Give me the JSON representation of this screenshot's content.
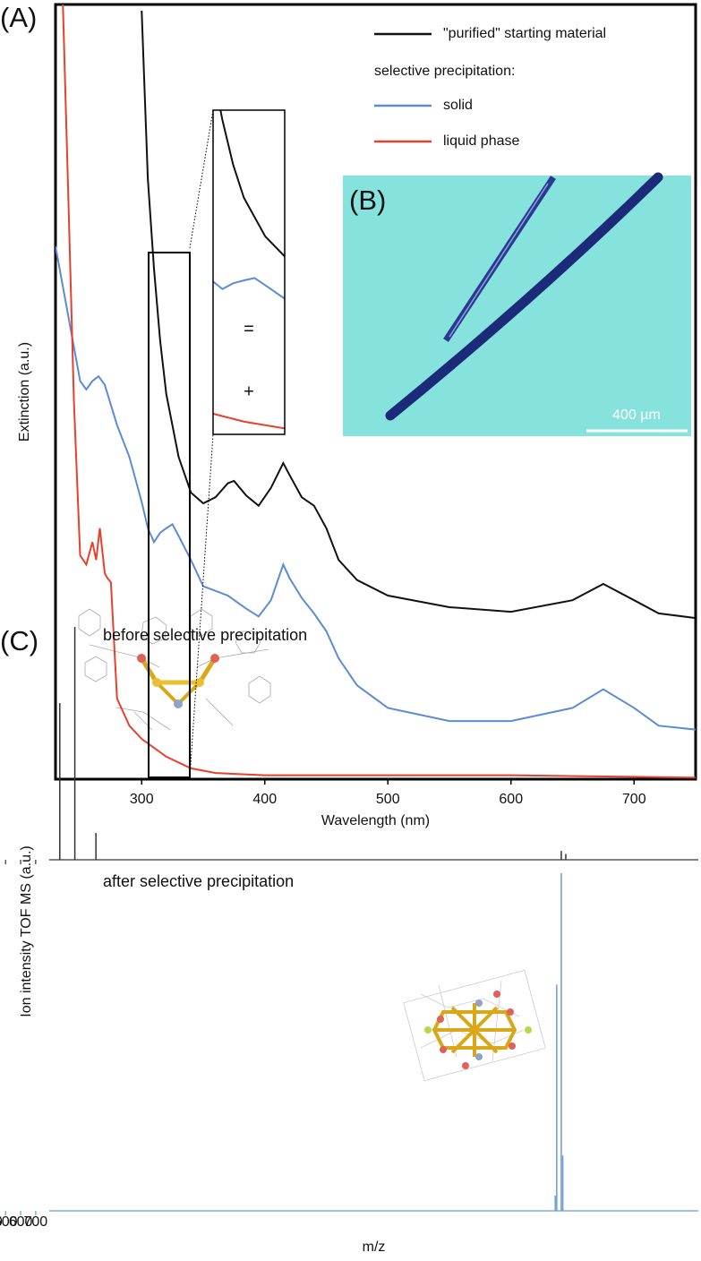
{
  "panel_labels": [
    "(A)",
    "(B)",
    "(C)"
  ],
  "image": {
    "scale_bar": "400 µm"
  },
  "chart_data": [
    {
      "type": "line",
      "xlabel": "Wavelength (nm)",
      "ylabel": "Extinction (a.u.)",
      "xlim": [
        230,
        750
      ],
      "xticks": [
        300,
        400,
        500,
        600,
        700
      ],
      "ylim": [
        0,
        100
      ],
      "legend_subtitle": "selective precipitation:",
      "inset_labels": [
        "=",
        "+"
      ],
      "series": [
        {
          "name": "\"purified\" starting material",
          "color": "#111111",
          "x": [
            300,
            305,
            310,
            315,
            320,
            330,
            340,
            350,
            360,
            370,
            375,
            385,
            395,
            405,
            415,
            420,
            430,
            440,
            450,
            460,
            475,
            500,
            550,
            600,
            650,
            675,
            700,
            720,
            750
          ],
          "values": [
            99.2,
            77.5,
            65.9,
            56.6,
            49.7,
            41.6,
            37.0,
            35.6,
            36.4,
            38.2,
            38.5,
            36.6,
            35.3,
            37.6,
            40.8,
            39.3,
            36.4,
            35.3,
            32.4,
            28.3,
            25.7,
            23.7,
            22.2,
            21.6,
            23.1,
            25.2,
            23.1,
            21.4,
            20.8
          ]
        },
        {
          "name": "solid",
          "color": "#5b8bd8",
          "x": [
            230,
            240,
            250,
            255,
            260,
            265,
            270,
            280,
            290,
            300,
            305,
            310,
            315,
            320,
            325,
            330,
            340,
            350,
            370,
            385,
            395,
            405,
            415,
            420,
            430,
            440,
            450,
            460,
            475,
            500,
            550,
            600,
            650,
            675,
            700,
            720,
            750
          ],
          "values": [
            68.8,
            60.1,
            51.4,
            50.3,
            51.4,
            52.0,
            50.9,
            45.7,
            41.6,
            35.8,
            32.4,
            30.6,
            31.8,
            32.4,
            32.9,
            31.4,
            28.3,
            24.9,
            23.7,
            22.0,
            21.0,
            23.1,
            27.7,
            26.0,
            23.4,
            21.4,
            19.1,
            15.6,
            12.1,
            9.2,
            7.5,
            7.5,
            9.2,
            11.6,
            9.2,
            6.9,
            6.4
          ]
        },
        {
          "name": "liquid phase",
          "color": "#e8402a",
          "x": [
            236,
            240,
            245,
            250,
            255,
            260,
            263,
            266,
            270,
            272,
            275,
            280,
            290,
            300,
            320,
            340,
            360,
            400,
            500,
            600,
            700,
            750
          ],
          "values": [
            100.0,
            77.5,
            48.6,
            28.9,
            27.7,
            30.6,
            28.3,
            32.4,
            26.6,
            26.0,
            25.4,
            10.4,
            6.9,
            5.2,
            2.9,
            1.4,
            0.8,
            0.5,
            0.5,
            0.5,
            0.3,
            0.2
          ]
        }
      ]
    },
    {
      "type": "stem",
      "title": "before selective precipitation",
      "ylabel": "Ion intensity TOF MS (a.u.)",
      "xlim": [
        790,
        5100
      ],
      "ylim": [
        0,
        100
      ],
      "color": "#333333",
      "x": [
        860,
        960,
        1100,
        4190,
        4220
      ],
      "values": [
        67.3,
        100,
        11.5,
        3.8,
        2.5
      ]
    },
    {
      "type": "stem",
      "title": "after selective precipitation",
      "xlabel": "m/z",
      "xlim": [
        790,
        5100
      ],
      "xticks": [
        1000,
        2000,
        3000,
        4000
      ],
      "ylim": [
        0,
        100
      ],
      "color": "#6a9bd1",
      "x": [
        4150,
        4160,
        4190,
        4200
      ],
      "values": [
        4.5,
        67,
        100,
        16.4
      ]
    }
  ]
}
